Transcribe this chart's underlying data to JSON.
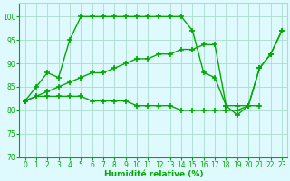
{
  "line1_x": [
    0,
    1,
    2,
    3,
    4,
    5,
    6,
    7,
    8,
    9,
    10,
    11,
    12,
    13,
    14,
    15,
    16,
    17,
    18,
    19,
    20,
    21,
    22,
    23
  ],
  "line1_y": [
    82,
    85,
    88,
    87,
    95,
    100,
    100,
    100,
    100,
    100,
    100,
    100,
    100,
    100,
    100,
    97,
    88,
    87,
    81,
    79,
    81,
    89,
    92,
    97
  ],
  "line2_x": [
    0,
    1,
    2,
    3,
    4,
    5,
    6,
    7,
    8,
    9,
    10,
    11,
    12,
    13,
    14,
    15,
    16,
    17,
    18,
    19,
    20,
    21
  ],
  "line2_y": [
    82,
    83,
    83,
    83,
    83,
    83,
    82,
    82,
    82,
    82,
    81,
    81,
    81,
    81,
    80,
    80,
    80,
    80,
    80,
    80,
    81,
    81
  ],
  "line3_x": [
    0,
    1,
    2,
    3,
    4,
    5,
    6,
    7,
    8,
    9,
    10,
    11,
    12,
    13,
    14,
    15,
    16,
    17,
    18,
    19,
    20,
    21,
    22,
    23
  ],
  "line3_y": [
    82,
    83,
    84,
    85,
    86,
    87,
    88,
    88,
    89,
    90,
    91,
    91,
    92,
    92,
    93,
    93,
    94,
    94,
    81,
    81,
    81,
    89,
    92,
    97
  ],
  "line_color": "#00AA00",
  "bg_color": "#DFFAFF",
  "grid_color": "#AADDCC",
  "xlabel": "Humidité relative (%)",
  "xlim": [
    -0.5,
    23.5
  ],
  "ylim": [
    70,
    103
  ],
  "yticks": [
    70,
    75,
    80,
    85,
    90,
    95,
    100
  ],
  "xticks": [
    0,
    1,
    2,
    3,
    4,
    5,
    6,
    7,
    8,
    9,
    10,
    11,
    12,
    13,
    14,
    15,
    16,
    17,
    18,
    19,
    20,
    21,
    22,
    23
  ]
}
